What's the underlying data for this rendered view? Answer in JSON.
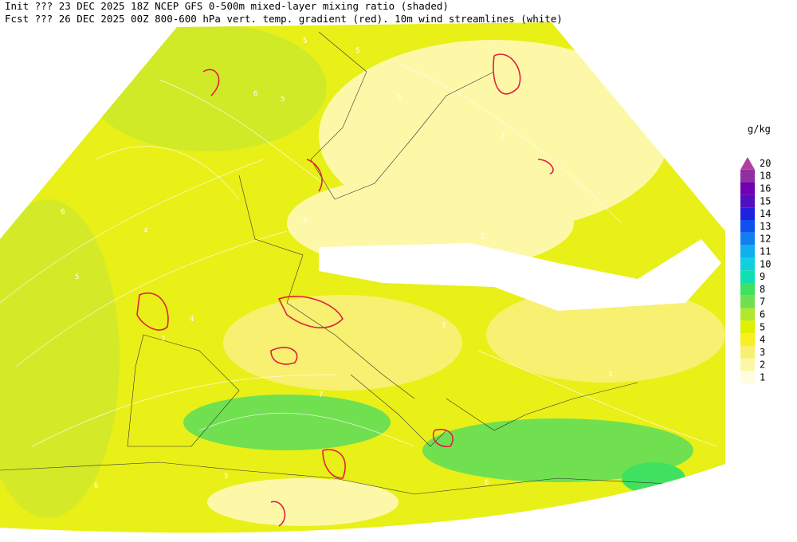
{
  "header": {
    "line1": "Init  ??? 23 DEC 2025 18Z  NCEP GFS 0-500m mixed-layer mixing ratio (shaded)",
    "line2": "Fcst ??? 26 DEC 2025 00Z  800-600 hPa vert. temp. gradient (red). 10m wind streamlines (white)"
  },
  "legend": {
    "unit": "g/kg",
    "levels": [
      20,
      18,
      16,
      15,
      14,
      13,
      12,
      11,
      10,
      9,
      8,
      7,
      6,
      5,
      4,
      3,
      2,
      1
    ],
    "colors": [
      "#b040a0",
      "#9030a0",
      "#7000b0",
      "#5010c0",
      "#2020e0",
      "#1050f0",
      "#1080f0",
      "#10b0f0",
      "#10d0e0",
      "#10e0b0",
      "#40e060",
      "#70e050",
      "#b0e830",
      "#e0f000",
      "#f8f020",
      "#f8f070",
      "#fcf8a8",
      "#fffce0"
    ]
  },
  "map": {
    "contour_labels": [
      "5",
      "5",
      "6",
      "5",
      "4",
      "3",
      "2",
      "4",
      "6",
      "5",
      "7",
      "4",
      "5",
      "3",
      "6",
      "7",
      "5",
      "6",
      "3",
      "2"
    ]
  }
}
